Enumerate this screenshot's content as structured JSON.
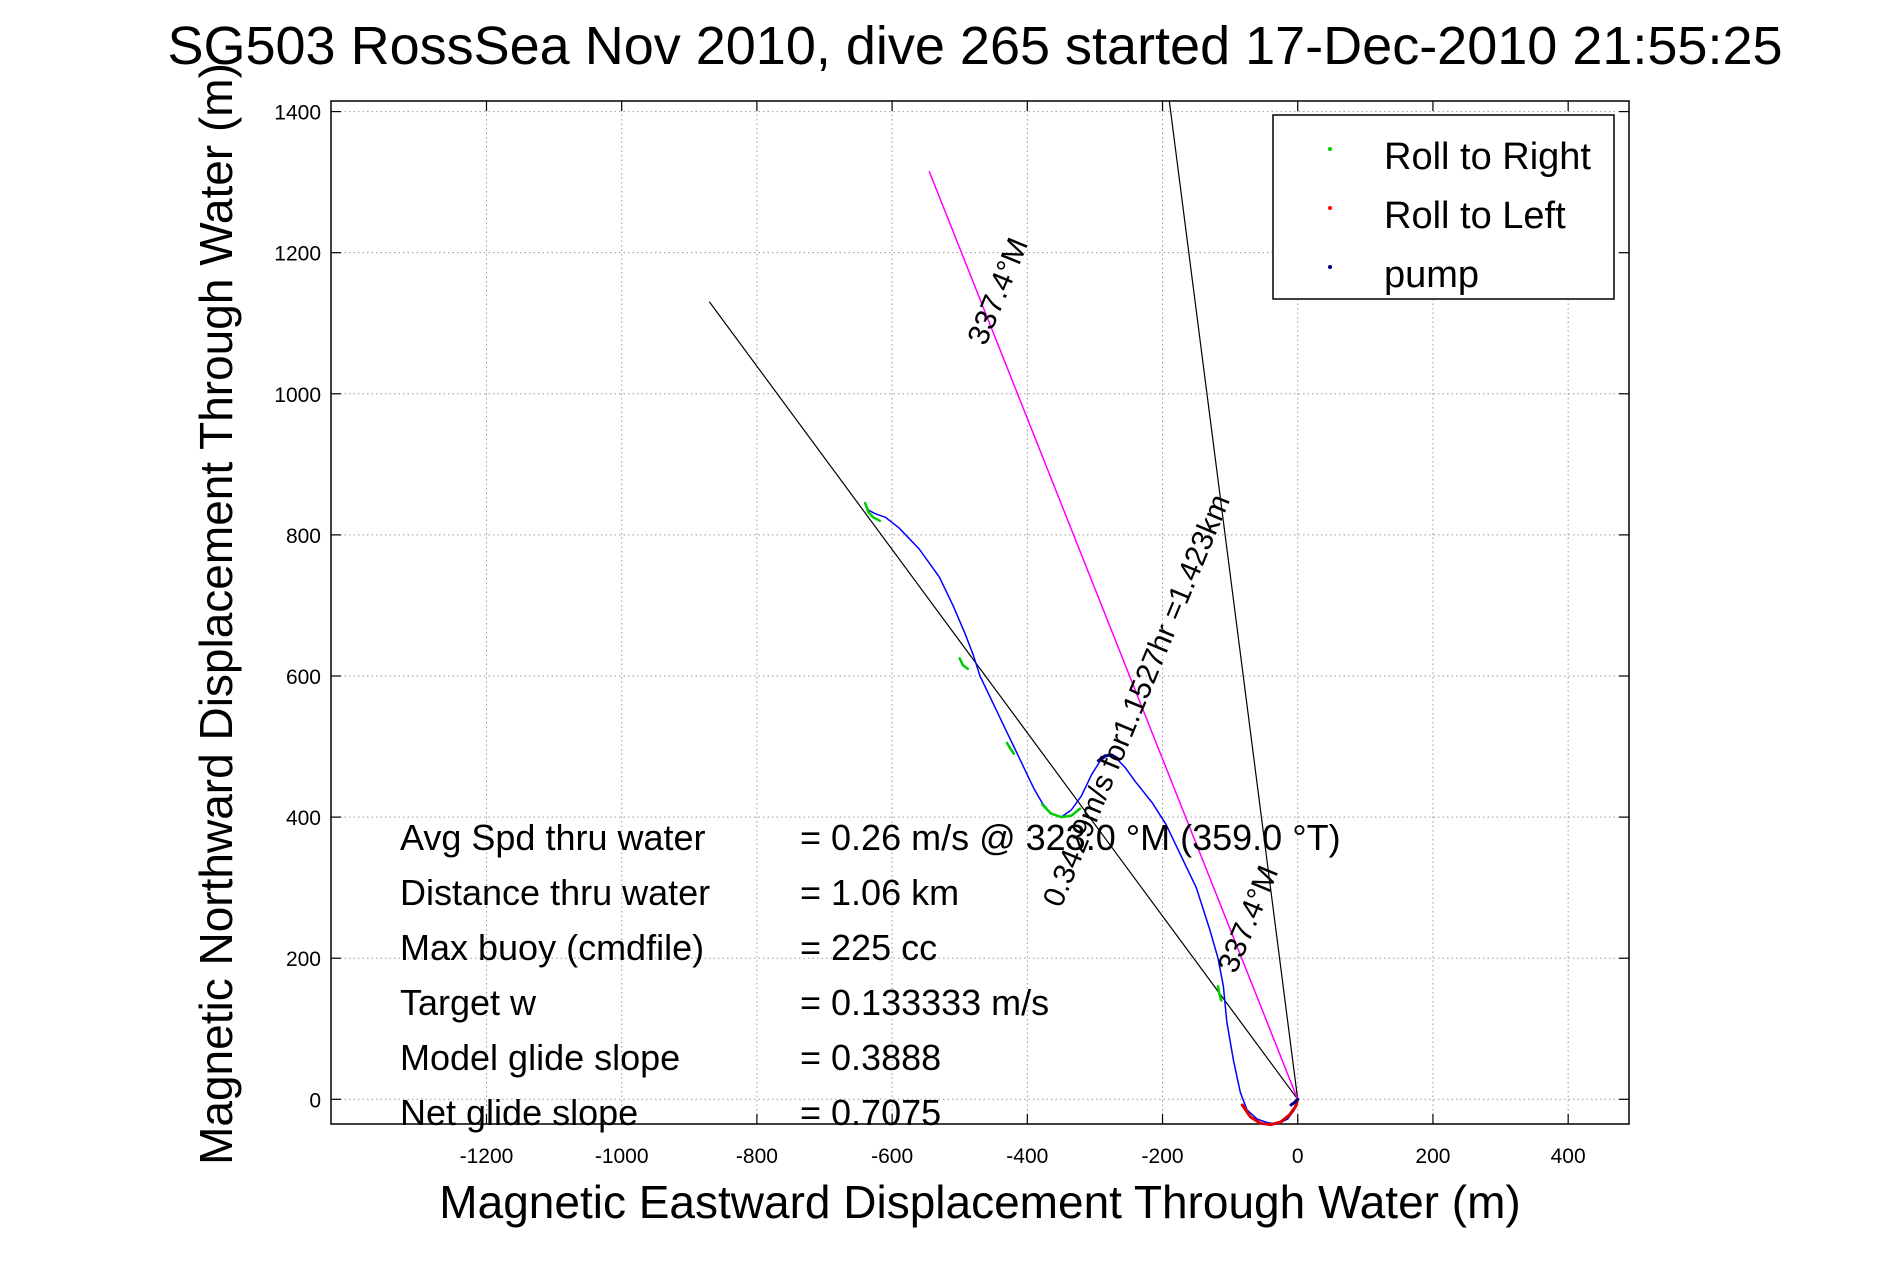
{
  "chart_data": {
    "type": "line",
    "title": "SG503 RossSea Nov 2010, dive 265 started 17-Dec-2010 21:55:25",
    "xlabel": "Magnetic Eastward Displacement Through Water (m)",
    "ylabel": "Magnetic Northward Displacement Through Water (m)",
    "xlim": [
      -1430,
      490
    ],
    "ylim": [
      -35,
      1415
    ],
    "xticks": [
      -1200,
      -1000,
      -800,
      -600,
      -400,
      -200,
      0,
      200,
      400
    ],
    "yticks": [
      0,
      200,
      400,
      600,
      800,
      1000,
      1200,
      1400
    ],
    "grid": true,
    "legend_position": "top-right",
    "legend": [
      {
        "label": "Roll to Right",
        "color": "#00cc00"
      },
      {
        "label": "Roll to Left",
        "color": "#ff0000"
      },
      {
        "label": "pump",
        "color": "#000080"
      }
    ],
    "colors": {
      "track": "#0000ff",
      "heading_line": "#ff00ff",
      "reference_lines": "#000000",
      "roll_right": "#00cc00",
      "roll_left": "#dd0000",
      "pump": "#000080"
    },
    "track": {
      "x": [
        0,
        -5,
        -15,
        -30,
        -45,
        -60,
        -75,
        -85,
        -95,
        -105,
        -110,
        -118,
        -130,
        -150,
        -175,
        -195,
        -215,
        -240,
        -255,
        -265,
        -272,
        -280,
        -292,
        -305,
        -320,
        -335,
        -350,
        -365,
        -378,
        -390,
        -400,
        -410,
        -420,
        -430,
        -450,
        -470,
        -480,
        -492,
        -510,
        -530,
        -560,
        -590,
        -610,
        -625,
        -635,
        -640
      ],
      "y": [
        0,
        -15,
        -28,
        -35,
        -33,
        -28,
        -15,
        10,
        55,
        110,
        160,
        200,
        240,
        300,
        350,
        390,
        420,
        450,
        470,
        480,
        485,
        488,
        480,
        460,
        430,
        410,
        400,
        405,
        420,
        440,
        460,
        480,
        500,
        520,
        560,
        600,
        630,
        660,
        700,
        740,
        780,
        810,
        825,
        830,
        835,
        845
      ]
    },
    "roll_right_segments": [
      {
        "x": [
          -640,
          -635,
          -628,
          -618
        ],
        "y": [
          845,
          832,
          825,
          820
        ]
      },
      {
        "x": [
          -500,
          -495,
          -488
        ],
        "y": [
          625,
          615,
          610
        ]
      },
      {
        "x": [
          -430,
          -425,
          -420
        ],
        "y": [
          505,
          497,
          490
        ]
      },
      {
        "x": [
          -378,
          -365,
          -350,
          -335,
          -322
        ],
        "y": [
          418,
          405,
          400,
          402,
          412
        ]
      },
      {
        "x": [
          -118,
          -116,
          -113
        ],
        "y": [
          160,
          150,
          140
        ]
      }
    ],
    "roll_left_segments": [
      {
        "x": [
          -82,
          -70,
          -55,
          -40,
          -25,
          -12,
          -3,
          0
        ],
        "y": [
          -8,
          -25,
          -34,
          -36,
          -32,
          -22,
          -10,
          0
        ]
      }
    ],
    "pump_segments": [
      {
        "x": [
          -295,
          -285,
          -275,
          -265
        ],
        "y": [
          480,
          487,
          488,
          482
        ]
      },
      {
        "x": [
          -10,
          -4,
          0
        ],
        "y": [
          -8,
          -4,
          0
        ]
      }
    ],
    "heading_line": {
      "x": [
        0,
        -545
      ],
      "y": [
        0,
        1315
      ],
      "label": "337.4°M"
    },
    "reference_lines": [
      {
        "x": [
          0,
          -870
        ],
        "y": [
          0,
          1130
        ]
      },
      {
        "x": [
          0,
          -190
        ],
        "y": [
          0,
          1415
        ]
      }
    ],
    "annotations": [
      {
        "text": "337.4°M",
        "x": -430,
        "y": 1140,
        "angle": -67.5
      },
      {
        "text": "0.3429m/s for1.1527hr =1.423km",
        "x": -225,
        "y": 560,
        "angle": -67.5
      },
      {
        "text": "337.4°M",
        "x": -60,
        "y": 250,
        "angle": -67.5
      }
    ],
    "stats": [
      {
        "label": "Avg Spd thru water",
        "value": "=  0.26 m/s @ 323.0 °M (359.0 °T)"
      },
      {
        "label": "Distance thru water",
        "value": "=  1.06 km"
      },
      {
        "label": "Max buoy (cmdfile)",
        "value": "= 225 cc"
      },
      {
        "label": "Target w",
        "value": "= 0.133333 m/s"
      },
      {
        "label": "Model glide slope",
        "value": "= 0.3888"
      },
      {
        "label": "Net glide slope",
        "value": "= 0.7075"
      }
    ]
  }
}
